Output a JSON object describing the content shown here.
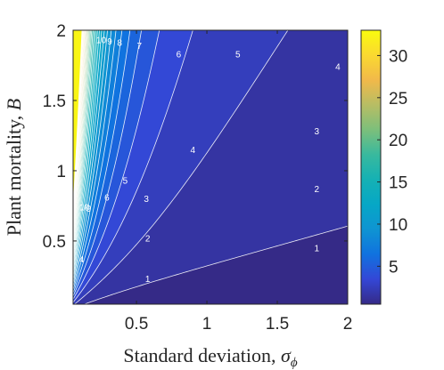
{
  "chart_data": {
    "type": "heatmap",
    "subtype": "filled contour plot",
    "xlabel_text": "Standard deviation, ",
    "xlabel_symbol": "σ",
    "xlabel_subscript": "ϕ",
    "ylabel_text": "Plant mortality, ",
    "ylabel_symbol": "B",
    "x_ticks": [
      "0.5",
      "1",
      "1.5",
      "2"
    ],
    "y_ticks": [
      "0.5",
      "1",
      "1.5",
      "2"
    ],
    "colorbar_ticks": [
      "5",
      "10",
      "15",
      "20",
      "25",
      "30"
    ],
    "xlim": [
      0.05,
      2
    ],
    "ylim": [
      0.05,
      2
    ],
    "clim": [
      0.5,
      33
    ],
    "colormap": "parula",
    "colors": [
      "#352a87",
      "#3447d6",
      "#1072df",
      "#0f94d2",
      "#06a7c6",
      "#15b1b4",
      "#38b99e",
      "#7cbf7b",
      "#b7bd64",
      "#f1b94a",
      "#fad930",
      "#f9fb0e"
    ],
    "contour_levels": [
      1,
      2,
      3,
      4,
      5,
      6,
      7,
      8,
      9,
      10,
      11,
      12,
      13,
      14,
      15,
      16,
      17,
      18,
      19,
      20,
      21,
      22,
      23,
      24,
      25,
      26,
      27,
      28,
      29,
      30,
      31,
      32
    ],
    "contour_labels": [
      {
        "text": "1",
        "x": 0.58,
        "y": 0.23
      },
      {
        "text": "1",
        "x": 1.78,
        "y": 0.45
      },
      {
        "text": "2",
        "x": 0.58,
        "y": 0.52
      },
      {
        "text": "2",
        "x": 1.78,
        "y": 0.87
      },
      {
        "text": "3",
        "x": 0.57,
        "y": 0.8
      },
      {
        "text": "3",
        "x": 1.78,
        "y": 1.28
      },
      {
        "text": "4",
        "x": 0.11,
        "y": 0.37
      },
      {
        "text": "4",
        "x": 0.9,
        "y": 1.15
      },
      {
        "text": "4",
        "x": 1.93,
        "y": 1.74
      },
      {
        "text": "5",
        "x": 0.42,
        "y": 0.93
      },
      {
        "text": "5",
        "x": 1.22,
        "y": 1.83
      },
      {
        "text": "6",
        "x": 0.29,
        "y": 0.81
      },
      {
        "text": "6",
        "x": 0.8,
        "y": 1.83
      },
      {
        "text": "7",
        "x": 0.52,
        "y": 1.89
      },
      {
        "text": "8",
        "x": 0.38,
        "y": 1.91
      },
      {
        "text": "9",
        "x": 0.16,
        "y": 0.73
      },
      {
        "text": "9",
        "x": 0.31,
        "y": 1.92
      },
      {
        "text": "10",
        "x": 0.13,
        "y": 0.74
      },
      {
        "text": "10",
        "x": 0.25,
        "y": 1.93
      }
    ]
  }
}
